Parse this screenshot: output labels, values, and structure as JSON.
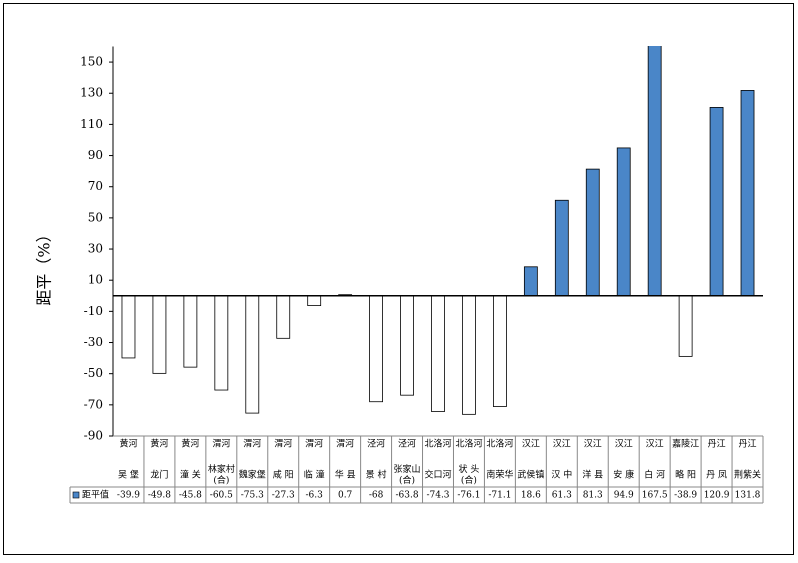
{
  "chart_data": {
    "type": "bar",
    "y_label": "距平（%）",
    "groups": [
      "黄河",
      "黄河",
      "黄河",
      "渭河",
      "渭河",
      "渭河",
      "渭河",
      "渭河",
      "泾河",
      "泾河",
      "北洛河",
      "北洛河",
      "北洛河",
      "汉江",
      "汉江",
      "汉江",
      "汉江",
      "汉江",
      "嘉陵江",
      "丹江",
      "丹江"
    ],
    "categories": [
      "吴 堡",
      "龙门",
      "潼 关",
      "林家村(合)",
      "魏家堡",
      "咸 阳",
      "临 潼",
      "华 县",
      "景 村",
      "张家山(合)",
      "交口河",
      "状 头(合)",
      "南荣华",
      "武侯镇",
      "汉 中",
      "洋 县",
      "安 康",
      "白 河",
      "略 阳",
      "丹 凤",
      "荆紫关"
    ],
    "series": [
      {
        "name": "距平值",
        "color": "#4a86c8",
        "negative_color": "#ffffff",
        "values": [
          -39.9,
          -49.8,
          -45.8,
          -60.5,
          -75.3,
          -27.3,
          -6.3,
          0.7,
          -68,
          -63.8,
          -74.3,
          -76.1,
          -71.1,
          18.6,
          61.3,
          81.3,
          94.9,
          167.5,
          -38.9,
          120.9,
          131.8
        ]
      }
    ],
    "ylim": [
      -90,
      160
    ],
    "yticks": [
      -90,
      -70,
      -50,
      -30,
      -10,
      10,
      30,
      50,
      70,
      90,
      110,
      130,
      150
    ]
  }
}
